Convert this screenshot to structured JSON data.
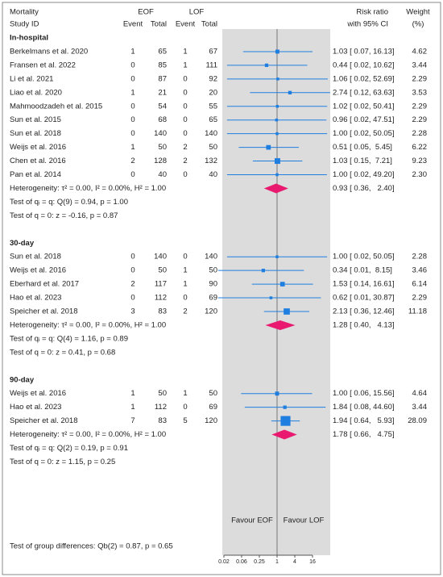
{
  "chart_data": {
    "type": "forest",
    "columns": {
      "title1": "Mortality",
      "title2": "Study ID",
      "group1": "EOF",
      "group2": "LOF",
      "event": "Event",
      "total": "Total",
      "effect1": "Risk ratio",
      "effect2": "with 95% CI",
      "weight1": "Weight",
      "weight2": "(%)"
    },
    "subgroups": [
      {
        "name": "In-hospital",
        "studies": [
          {
            "study": "Berkelmans et al. 2020",
            "eof_event": 1,
            "eof_total": 65,
            "lof_event": 1,
            "lof_total": 67,
            "rr": 1.03,
            "lo": 0.07,
            "hi": 16.13,
            "ci_label": "1.03 [ 0.07, 16.13]",
            "weight": 4.62
          },
          {
            "study": "Fransen et al. 2022",
            "eof_event": 0,
            "eof_total": 85,
            "lof_event": 1,
            "lof_total": 111,
            "rr": 0.44,
            "lo": 0.02,
            "hi": 10.62,
            "ci_label": "0.44 [ 0.02, 10.62]",
            "weight": 3.44
          },
          {
            "study": "Li et al. 2021",
            "eof_event": 0,
            "eof_total": 87,
            "lof_event": 0,
            "lof_total": 92,
            "rr": 1.06,
            "lo": 0.02,
            "hi": 52.69,
            "ci_label": "1.06 [ 0.02, 52.69]",
            "weight": 2.29
          },
          {
            "study": "Liao et al. 2020",
            "eof_event": 1,
            "eof_total": 21,
            "lof_event": 0,
            "lof_total": 20,
            "rr": 2.74,
            "lo": 0.12,
            "hi": 63.63,
            "ci_label": "2.74 [ 0.12, 63.63]",
            "weight": 3.53
          },
          {
            "study": "Mahmoodzadeh et al. 2015",
            "eof_event": 0,
            "eof_total": 54,
            "lof_event": 0,
            "lof_total": 55,
            "rr": 1.02,
            "lo": 0.02,
            "hi": 50.41,
            "ci_label": "1.02 [ 0.02, 50.41]",
            "weight": 2.29
          },
          {
            "study": "Sun et al. 2015",
            "eof_event": 0,
            "eof_total": 68,
            "lof_event": 0,
            "lof_total": 65,
            "rr": 0.96,
            "lo": 0.02,
            "hi": 47.51,
            "ci_label": "0.96 [ 0.02, 47.51]",
            "weight": 2.29
          },
          {
            "study": "Sun et al. 2018",
            "eof_event": 0,
            "eof_total": 140,
            "lof_event": 0,
            "lof_total": 140,
            "rr": 1,
            "lo": 0.02,
            "hi": 50.05,
            "ci_label": "1.00 [ 0.02, 50.05]",
            "weight": 2.28
          },
          {
            "study": "Weijs et al. 2016",
            "eof_event": 1,
            "eof_total": 50,
            "lof_event": 2,
            "lof_total": 50,
            "rr": 0.51,
            "lo": 0.05,
            "hi": 5.45,
            "ci_label": "0.51 [ 0.05,  5.45]",
            "weight": 6.22
          },
          {
            "study": "Chen et al. 2016",
            "eof_event": 2,
            "eof_total": 128,
            "lof_event": 2,
            "lof_total": 132,
            "rr": 1.03,
            "lo": 0.15,
            "hi": 7.21,
            "ci_label": "1.03 [ 0.15,  7.21]",
            "weight": 9.23
          },
          {
            "study": "Pan et al. 2014",
            "eof_event": 0,
            "eof_total": 40,
            "lof_event": 0,
            "lof_total": 40,
            "rr": 1,
            "lo": 0.02,
            "hi": 49.2,
            "ci_label": "1.00 [ 0.02, 49.20]",
            "weight": 2.3,
            "weight_label": "2.30"
          }
        ],
        "pooled": {
          "rr": 0.93,
          "lo": 0.36,
          "hi": 2.4,
          "ci_label": "0.93 [ 0.36,   2.40]"
        },
        "heterogeneity": "Heterogeneity: τ² = 0.00, I² = 0.00%, H² = 1.00",
        "test_qi": "Test of qᵢ = q: Q(9) = 0.94, p = 1.00",
        "test_zero": "Test of q = 0: z = -0.16, p = 0.87"
      },
      {
        "name": "30-day",
        "studies": [
          {
            "study": "Sun et al. 2018",
            "eof_event": 0,
            "eof_total": 140,
            "lof_event": 0,
            "lof_total": 140,
            "rr": 1,
            "lo": 0.02,
            "hi": 50.05,
            "ci_label": "1.00 [ 0.02, 50.05]",
            "weight": 2.28
          },
          {
            "study": "Weijs et al. 2016",
            "eof_event": 0,
            "eof_total": 50,
            "lof_event": 1,
            "lof_total": 50,
            "rr": 0.34,
            "lo": 0.01,
            "hi": 8.15,
            "ci_label": "0.34 [ 0.01,  8.15]",
            "weight": 3.46
          },
          {
            "study": "Eberhard et al. 2017",
            "eof_event": 2,
            "eof_total": 117,
            "lof_event": 1,
            "lof_total": 90,
            "rr": 1.53,
            "lo": 0.14,
            "hi": 16.61,
            "ci_label": "1.53 [ 0.14, 16.61]",
            "weight": 6.14
          },
          {
            "study": "Hao et al. 2023",
            "eof_event": 0,
            "eof_total": 112,
            "lof_event": 0,
            "lof_total": 69,
            "rr": 0.62,
            "lo": 0.01,
            "hi": 30.87,
            "ci_label": "0.62 [ 0.01, 30.87]",
            "weight": 2.29
          },
          {
            "study": "Speicher et al. 2018",
            "eof_event": 3,
            "eof_total": 83,
            "lof_event": 2,
            "lof_total": 120,
            "rr": 2.13,
            "lo": 0.36,
            "hi": 12.46,
            "ci_label": "2.13 [ 0.36, 12.46]",
            "weight": 11.18
          }
        ],
        "pooled": {
          "rr": 1.28,
          "lo": 0.4,
          "hi": 4.13,
          "ci_label": "1.28 [ 0.40,   4.13]"
        },
        "heterogeneity": "Heterogeneity: τ² = 0.00, I² = 0.00%, H² = 1.00",
        "test_qi": "Test of qᵢ = q: Q(4) = 1.16, p = 0.89",
        "test_zero": "Test of q = 0: z = 0.41, p = 0.68"
      },
      {
        "name": "90-day",
        "studies": [
          {
            "study": "Weijs et al. 2016",
            "eof_event": 1,
            "eof_total": 50,
            "lof_event": 1,
            "lof_total": 50,
            "rr": 1,
            "lo": 0.06,
            "hi": 15.56,
            "ci_label": "1.00 [ 0.06, 15.56]",
            "weight": 4.64
          },
          {
            "study": "Hao et al. 2023",
            "eof_event": 1,
            "eof_total": 112,
            "lof_event": 0,
            "lof_total": 69,
            "rr": 1.84,
            "lo": 0.08,
            "hi": 44.6,
            "ci_label": "1.84 [ 0.08, 44.60]",
            "weight": 3.44
          },
          {
            "study": "Speicher et al. 2018",
            "eof_event": 7,
            "eof_total": 83,
            "lof_event": 5,
            "lof_total": 120,
            "rr": 1.94,
            "lo": 0.64,
            "hi": 5.93,
            "ci_label": "1.94 [ 0.64,   5.93]",
            "weight": 28.09
          }
        ],
        "pooled": {
          "rr": 1.78,
          "lo": 0.66,
          "hi": 4.75,
          "ci_label": "1.78 [ 0.66,   4.75]"
        },
        "heterogeneity": "Heterogeneity: τ² = 0.00, I² = 0.00%, H² = 1.00",
        "test_qi": "Test of qᵢ = q: Q(2) = 0.19, p = 0.91",
        "test_zero": "Test of q = 0: z = 1.15, p = 0.25"
      }
    ],
    "favour": [
      "Favour EOF",
      "Favour LOF"
    ],
    "group_test": "Test of group differences: Qb(2) = 0.87, p = 0.65",
    "log_scale": true,
    "reference": 1,
    "xlim": [
      0.0138,
      64
    ],
    "xticks": [
      {
        "value": 0.015625,
        "label": "0.02"
      },
      {
        "value": 0.0625,
        "label": "0.06"
      },
      0.25,
      1,
      4,
      16
    ],
    "marker_color": "#1f7fe0",
    "pooled_color": "#e8196e",
    "subgroup_color": "#e0197a",
    "group_test_color": "#1aa67a"
  }
}
